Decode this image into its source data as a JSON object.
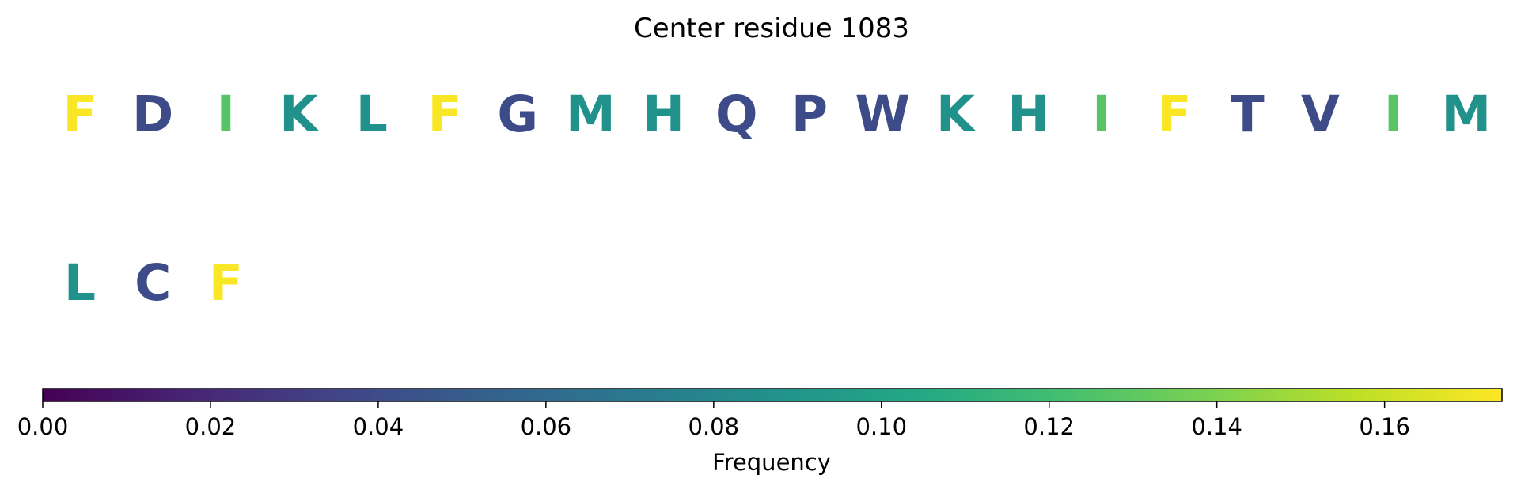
{
  "chart_data": {
    "type": "heatmap",
    "title": "Center residue 1083",
    "residues": [
      {
        "letter": "F",
        "freq": 0.173
      },
      {
        "letter": "D",
        "freq": 0.04
      },
      {
        "letter": "I",
        "freq": 0.128
      },
      {
        "letter": "K",
        "freq": 0.087
      },
      {
        "letter": "L",
        "freq": 0.087
      },
      {
        "letter": "F",
        "freq": 0.173
      },
      {
        "letter": "G",
        "freq": 0.04
      },
      {
        "letter": "M",
        "freq": 0.087
      },
      {
        "letter": "H",
        "freq": 0.087
      },
      {
        "letter": "Q",
        "freq": 0.04
      },
      {
        "letter": "P",
        "freq": 0.04
      },
      {
        "letter": "W",
        "freq": 0.04
      },
      {
        "letter": "K",
        "freq": 0.087
      },
      {
        "letter": "H",
        "freq": 0.087
      },
      {
        "letter": "I",
        "freq": 0.128
      },
      {
        "letter": "F",
        "freq": 0.173
      },
      {
        "letter": "T",
        "freq": 0.04
      },
      {
        "letter": "V",
        "freq": 0.04
      },
      {
        "letter": "I",
        "freq": 0.128
      },
      {
        "letter": "M",
        "freq": 0.087
      },
      {
        "letter": "L",
        "freq": 0.087
      },
      {
        "letter": "C",
        "freq": 0.04
      },
      {
        "letter": "F",
        "freq": 0.173
      }
    ],
    "colorbar": {
      "label": "Frequency",
      "colormap": "viridis",
      "range": [
        0,
        0.174
      ],
      "ticks": [
        0.0,
        0.02,
        0.04,
        0.06,
        0.08,
        0.1,
        0.12,
        0.14,
        0.16
      ],
      "tick_labels": [
        "0.00",
        "0.02",
        "0.04",
        "0.06",
        "0.08",
        "0.10",
        "0.12",
        "0.14",
        "0.16"
      ]
    }
  }
}
